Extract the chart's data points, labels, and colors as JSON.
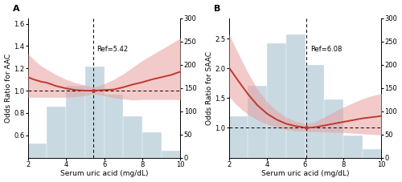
{
  "panel_A": {
    "label": "A",
    "ref_line": 5.42,
    "ref_text": "Ref=5.42",
    "ylabel_left": "Odds Ratio for AAC",
    "ylim_left": [
      0.4,
      1.65
    ],
    "yticks_left": [
      0.6,
      0.8,
      1.0,
      1.2,
      1.4,
      1.6
    ],
    "ylim_right": [
      0,
      300
    ],
    "yticks_right": [
      0,
      50,
      100,
      150,
      200,
      250,
      300
    ],
    "hist_edges": [
      2,
      3,
      4,
      5,
      6,
      7,
      8,
      9,
      10
    ],
    "hist_heights": [
      30,
      110,
      155,
      195,
      135,
      88,
      55,
      15
    ],
    "curve_x": [
      2.0,
      2.3,
      2.7,
      3.0,
      3.5,
      4.0,
      4.5,
      5.0,
      5.42,
      6.0,
      6.5,
      7.0,
      7.5,
      8.0,
      8.5,
      9.0,
      9.5,
      10.0
    ],
    "curve_y": [
      1.12,
      1.1,
      1.08,
      1.07,
      1.04,
      1.02,
      1.005,
      1.0,
      1.0,
      1.005,
      1.01,
      1.03,
      1.055,
      1.075,
      1.1,
      1.12,
      1.14,
      1.17
    ],
    "ci_upper": [
      1.33,
      1.28,
      1.22,
      1.19,
      1.14,
      1.1,
      1.07,
      1.05,
      1.03,
      1.06,
      1.1,
      1.15,
      1.21,
      1.27,
      1.32,
      1.37,
      1.42,
      1.47
    ],
    "ci_lower": [
      0.94,
      0.94,
      0.94,
      0.94,
      0.94,
      0.94,
      0.945,
      0.955,
      0.97,
      0.955,
      0.935,
      0.925,
      0.915,
      0.92,
      0.92,
      0.92,
      0.92,
      0.92
    ]
  },
  "panel_B": {
    "label": "B",
    "ref_line": 6.08,
    "ref_text": "Ref=6.08",
    "ylabel_left": "Odds Ratio for SAAC",
    "ylim_left": [
      0.5,
      2.85
    ],
    "yticks_left": [
      1.0,
      1.5,
      2.0,
      2.5
    ],
    "ylim_right": [
      0,
      300
    ],
    "yticks_right": [
      0,
      50,
      100,
      150,
      200,
      250,
      300
    ],
    "hist_edges": [
      2,
      3,
      4,
      5,
      6,
      7,
      8,
      9,
      10
    ],
    "hist_heights": [
      88,
      155,
      245,
      265,
      200,
      125,
      48,
      18
    ],
    "curve_x": [
      2.0,
      2.3,
      2.7,
      3.0,
      3.5,
      4.0,
      4.5,
      5.0,
      5.5,
      6.0,
      6.08,
      6.5,
      7.0,
      7.5,
      8.0,
      8.5,
      9.0,
      9.5,
      10.0
    ],
    "curve_y": [
      2.02,
      1.88,
      1.7,
      1.57,
      1.38,
      1.24,
      1.14,
      1.07,
      1.03,
      1.005,
      1.0,
      1.01,
      1.04,
      1.07,
      1.1,
      1.13,
      1.16,
      1.18,
      1.2
    ],
    "ci_upper": [
      2.58,
      2.38,
      2.12,
      1.93,
      1.65,
      1.44,
      1.29,
      1.18,
      1.11,
      1.07,
      1.065,
      1.1,
      1.18,
      1.27,
      1.35,
      1.42,
      1.49,
      1.54,
      1.58
    ],
    "ci_lower": [
      1.53,
      1.42,
      1.3,
      1.23,
      1.13,
      1.06,
      1.01,
      0.97,
      0.95,
      0.945,
      0.94,
      0.935,
      0.93,
      0.925,
      0.92,
      0.91,
      0.9,
      0.89,
      0.88
    ]
  },
  "xlabel": "Serum uric acid (mg/dL)",
  "xlim": [
    2,
    10
  ],
  "xticks": [
    2,
    4,
    6,
    8,
    10
  ],
  "hist_color": "#b8cdd9",
  "hist_alpha": 0.75,
  "curve_color": "#c0392b",
  "ci_color": "#e8a0a0",
  "ci_alpha": 0.55,
  "hline_style": "--",
  "vline_style": "--",
  "background_color": "white",
  "font_size": 6.5,
  "tick_font_size": 6,
  "label_font_size": 8
}
